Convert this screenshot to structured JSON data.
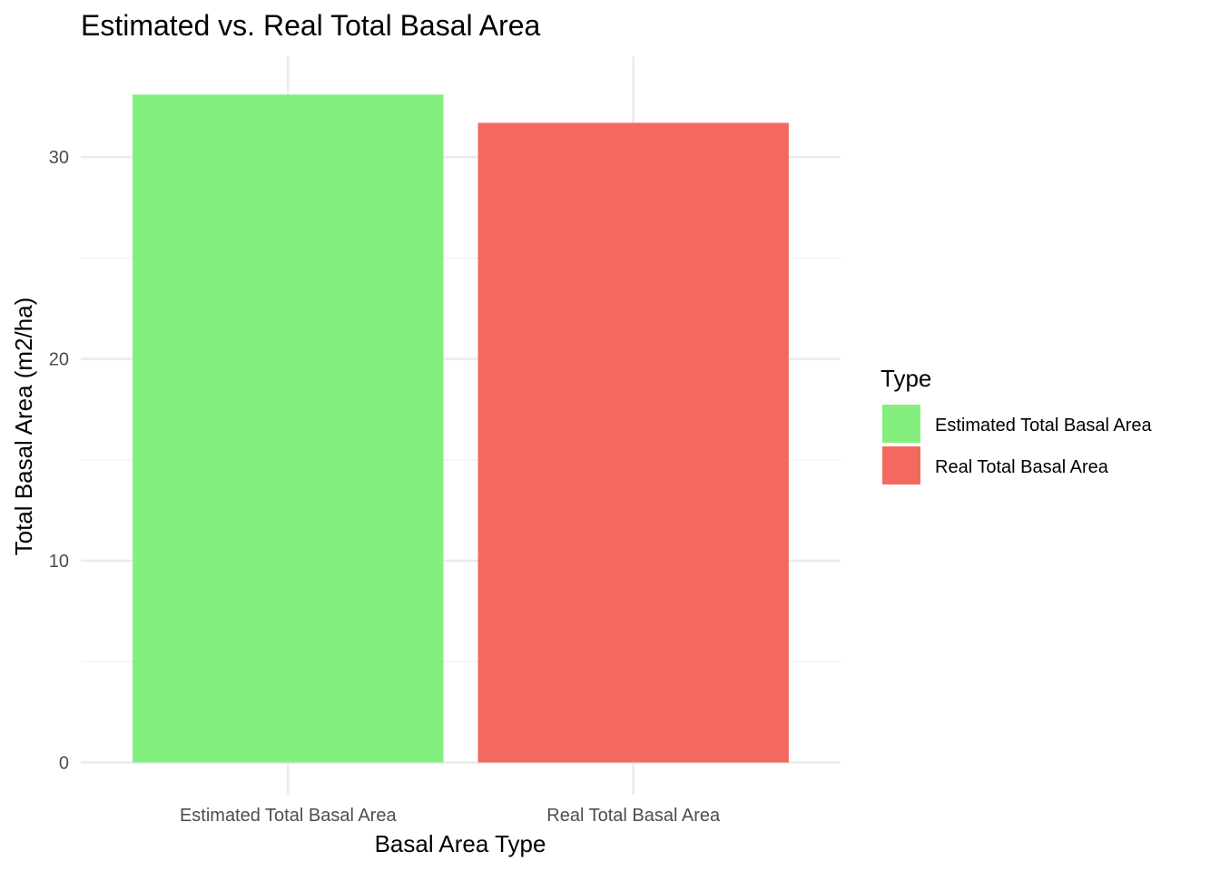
{
  "chart_data": {
    "type": "bar",
    "title": "Estimated vs. Real Total Basal Area",
    "xlabel": "Basal Area Type",
    "ylabel": "Total Basal Area (m2/ha)",
    "categories": [
      "Estimated Total Basal Area",
      "Real Total Basal Area"
    ],
    "values": [
      33.1,
      31.7
    ],
    "colors": [
      "#84EF7F",
      "#F4695F"
    ],
    "ylim": [
      -1.6,
      35.0
    ],
    "yticks": [
      0,
      10,
      20,
      30
    ],
    "ytick_labels": [
      "0",
      "10",
      "20",
      "30"
    ],
    "grid": true,
    "legend": {
      "title": "Type",
      "placement": "right",
      "entries": [
        {
          "label": "Estimated Total Basal Area",
          "color": "#84EF7F"
        },
        {
          "label": "Real Total Basal Area",
          "color": "#F4695F"
        }
      ]
    }
  }
}
